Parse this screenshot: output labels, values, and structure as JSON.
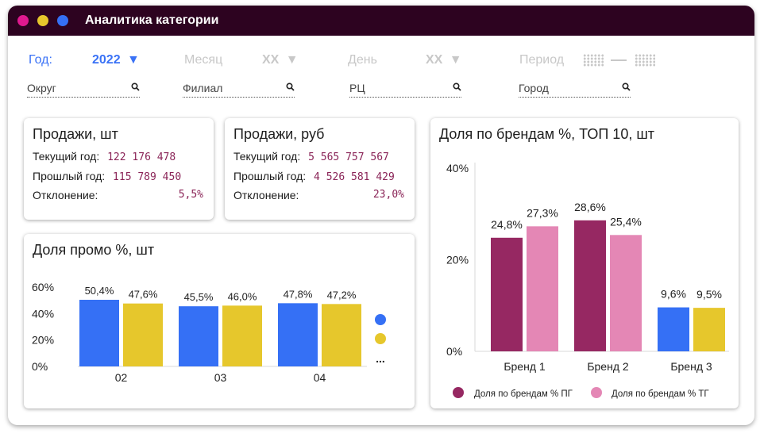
{
  "window": {
    "title": "Аналитика категории"
  },
  "colors": {
    "titlebar": "#2d0320",
    "dot_pink": "#e0198f",
    "dot_yellow": "#e6c72c",
    "dot_blue": "#3570f5",
    "accent_blue": "#3a72f6"
  },
  "filters": {
    "year_label": "Год:",
    "year_value": "2022",
    "month_label": "Месяц",
    "month_value": "XX",
    "day_label": "День",
    "day_value": "XX",
    "period_label": "Период",
    "okrug": "Округ",
    "filial": "Филиал",
    "rc": "РЦ",
    "gorod": "Город"
  },
  "sales_units": {
    "title": "Продажи, шт",
    "rows": [
      {
        "label": "Текущий год:",
        "value": "122 176 478"
      },
      {
        "label": "Прошлый год:",
        "value": "115 789 450"
      },
      {
        "label": "Отклонение:",
        "value": "5,5%"
      }
    ]
  },
  "sales_rub": {
    "title": "Продажи, руб",
    "rows": [
      {
        "label": "Текущий год:",
        "value": "5 565 757 567"
      },
      {
        "label": "Прошлый год:",
        "value": "4 526 581 429"
      },
      {
        "label": "Отклонение:",
        "value": "23,0%"
      }
    ]
  },
  "chart_data": [
    {
      "type": "bar",
      "title": "Доля промо %, шт",
      "categories": [
        "02",
        "03",
        "04"
      ],
      "series": [
        {
          "values": [
            50.4,
            45.5,
            47.8
          ],
          "labels": [
            "50,4%",
            "45,5%",
            "47,8%"
          ],
          "color": "#3570f5"
        },
        {
          "values": [
            47.6,
            46.0,
            47.2
          ],
          "labels": [
            "47,6%",
            "46,0%",
            "47,2%"
          ],
          "color": "#e6c72c"
        }
      ],
      "y_ticks": [
        "0%",
        "20%",
        "40%",
        "60%"
      ],
      "ylim": [
        0,
        60
      ],
      "legend_more": "..."
    },
    {
      "type": "bar",
      "title": "Доля по брендам %, ТОП 10, шт",
      "categories": [
        "Бренд 1",
        "Бренд 2",
        "Бренд 3"
      ],
      "series": [
        {
          "name": "Доля по брендам % ПГ",
          "values": [
            24.8,
            28.6,
            9.6
          ],
          "labels": [
            "24,8%",
            "28,6%",
            "9,6%"
          ],
          "colors": [
            "#962862",
            "#962862",
            "#3570f5"
          ]
        },
        {
          "name": "Доля по брендам % ТГ",
          "values": [
            27.3,
            25.4,
            9.5
          ],
          "labels": [
            "27,3%",
            "25,4%",
            "9,5%"
          ],
          "colors": [
            "#e487b5",
            "#e487b5",
            "#e6c72c"
          ]
        }
      ],
      "y_ticks": [
        "0%",
        "20%",
        "40%"
      ],
      "ylim": [
        0,
        40
      ],
      "legend_colors": [
        "#962862",
        "#e487b5"
      ]
    }
  ]
}
